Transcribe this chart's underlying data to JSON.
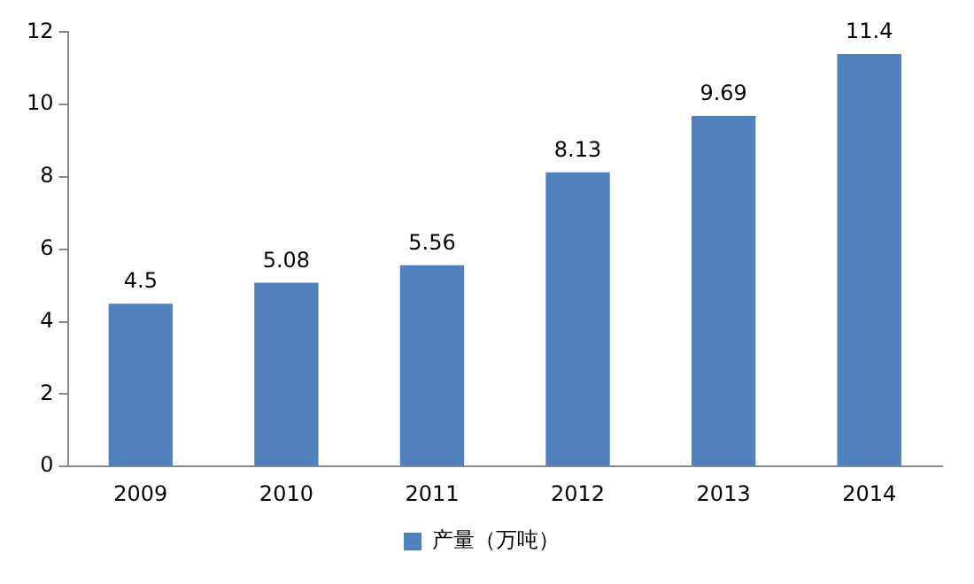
{
  "chart_data": {
    "type": "bar",
    "categories": [
      "2009",
      "2010",
      "2011",
      "2012",
      "2013",
      "2014"
    ],
    "series": [
      {
        "name": "产量（万吨）",
        "color": "#4f81bd",
        "values": [
          4.5,
          5.08,
          5.56,
          8.13,
          9.69,
          11.4
        ]
      }
    ],
    "ylim": [
      0,
      12
    ],
    "yticks": [
      0,
      2,
      4,
      6,
      8,
      10,
      12
    ],
    "grid": false,
    "legend": "bottom",
    "data_labels": true
  }
}
